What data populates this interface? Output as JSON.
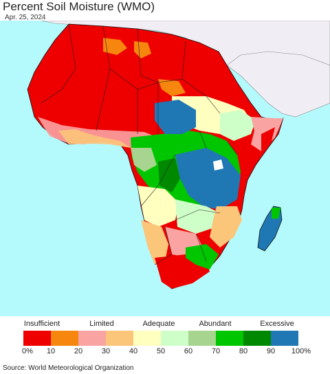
{
  "title": "Percent Soil Moisture (WMO)",
  "date": "Apr. 25, 2024",
  "legend": {
    "categories": [
      "Insufficient",
      "Limited",
      "Adequate",
      "Abundant",
      "Excessive"
    ],
    "colors": [
      "#ee0000",
      "#f7860f",
      "#f9a3a3",
      "#fbc57a",
      "#ffffbf",
      "#cfffc8",
      "#a7d58f",
      "#00c600",
      "#008800",
      "#1f78b4"
    ],
    "ticks": [
      "0%",
      "10",
      "20",
      "30",
      "40",
      "50",
      "60",
      "70",
      "80",
      "90",
      "100%"
    ]
  },
  "source": "Source: World Meteorological Organization",
  "map_colors": {
    "ocean": "#b4fafc",
    "outside_region": "#f0eef4"
  }
}
